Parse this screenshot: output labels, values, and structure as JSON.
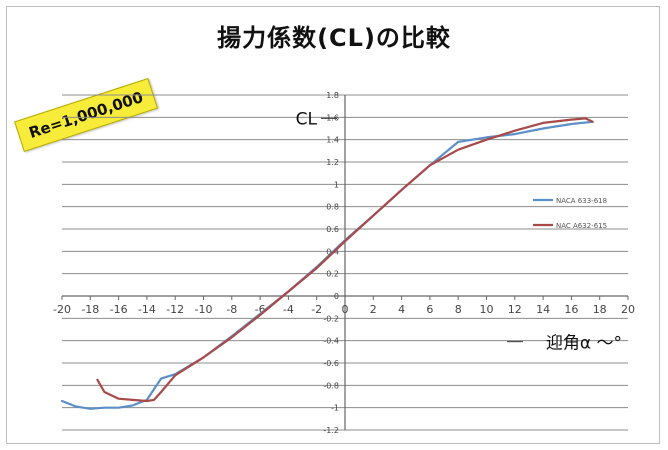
{
  "title": "揚力係数(CL)の比較",
  "annotation": "Re=1,000,000",
  "chart_data": {
    "type": "line",
    "title": "揚力係数(CL)の比較",
    "xlabel": "迎角α ～°",
    "ylabel": "CL",
    "xlim": [
      -20,
      20
    ],
    "ylim": [
      -1.2,
      1.8
    ],
    "xticks": [
      -20,
      -18,
      -16,
      -14,
      -12,
      -10,
      -8,
      -6,
      -4,
      -2,
      0,
      2,
      4,
      6,
      8,
      10,
      12,
      14,
      16,
      18,
      20
    ],
    "yticks": [
      -1.2,
      -1,
      -0.8,
      -0.6,
      -0.4,
      -0.2,
      0,
      0.2,
      0.4,
      0.6,
      0.8,
      1,
      1.2,
      1.4,
      1.6,
      1.8
    ],
    "grid": true,
    "legend_position": "right",
    "series": [
      {
        "name": "NACA 633-618",
        "color": "#5b8fc7",
        "x": [
          -20,
          -19,
          -18,
          -17,
          -16,
          -15,
          -14,
          -13,
          -12,
          -10,
          -8,
          -6,
          -4,
          -2,
          0,
          2,
          4,
          6,
          8,
          10,
          12,
          14,
          16,
          17.5
        ],
        "y": [
          -0.94,
          -0.99,
          -1.01,
          -1.0,
          -1.0,
          -0.98,
          -0.93,
          -0.74,
          -0.7,
          -0.55,
          -0.36,
          -0.16,
          0.04,
          0.26,
          0.5,
          0.72,
          0.95,
          1.17,
          1.38,
          1.42,
          1.45,
          1.5,
          1.54,
          1.56
        ]
      },
      {
        "name": "NAC A632-615",
        "color": "#a94a4a",
        "x": [
          -17.5,
          -17,
          -16,
          -15,
          -14,
          -13.5,
          -13,
          -12,
          -10,
          -8,
          -6,
          -4,
          -2,
          0,
          2,
          4,
          6,
          8,
          10,
          12,
          14,
          16,
          17,
          17.5
        ],
        "y": [
          -0.75,
          -0.86,
          -0.92,
          -0.93,
          -0.94,
          -0.93,
          -0.86,
          -0.71,
          -0.55,
          -0.37,
          -0.17,
          0.04,
          0.25,
          0.49,
          0.72,
          0.95,
          1.17,
          1.31,
          1.4,
          1.48,
          1.55,
          1.58,
          1.59,
          1.56
        ]
      }
    ]
  }
}
